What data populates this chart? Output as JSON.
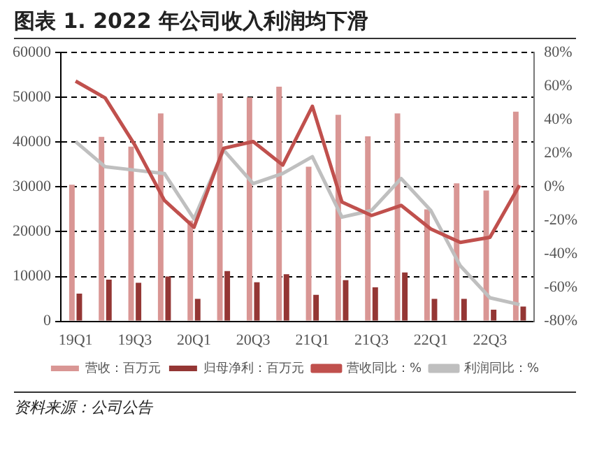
{
  "chart_data": {
    "type": "bar",
    "title": "图表 1. 2022 年公司收入利润均下滑",
    "categories": [
      "19Q1",
      null,
      "19Q3",
      null,
      "20Q1",
      null,
      "20Q3",
      null,
      "21Q1",
      null,
      "21Q3",
      null,
      "22Q1",
      null,
      "22Q3",
      null
    ],
    "series": [
      {
        "name": "营收：百万元",
        "color": "#d99694",
        "values": [
          30500,
          41200,
          39000,
          46400,
          22500,
          50900,
          50000,
          52400,
          34500,
          46100,
          41300,
          46400,
          25000,
          30800,
          29200,
          46800
        ]
      },
      {
        "name": "归母净利：百万元",
        "color": "#943634",
        "values": [
          6200,
          9300,
          8600,
          10000,
          5000,
          11200,
          8700,
          10500,
          5900,
          9200,
          7600,
          10900,
          5000,
          5000,
          2600,
          3300
        ]
      },
      {
        "name": "营收同比：%",
        "type": "line",
        "axis": "y2",
        "color": "#c0504d",
        "values": [
          63,
          53,
          25,
          -8,
          -24,
          23,
          27,
          13,
          48,
          -9,
          -17,
          -11,
          -25,
          -33,
          -30,
          1
        ]
      },
      {
        "name": "利润同比：%",
        "type": "line",
        "axis": "y2",
        "color": "#bfbfbf",
        "values": [
          27,
          12,
          10,
          8,
          -19,
          22,
          2,
          8,
          18,
          -18,
          -14,
          5,
          -14,
          -47,
          -66,
          -70
        ]
      }
    ],
    "ylim": [
      0,
      60000
    ],
    "yticks": [
      0,
      10000,
      20000,
      30000,
      40000,
      50000,
      60000
    ],
    "y2lim": [
      -80,
      80
    ],
    "y2ticks": [
      {
        "value": -80,
        "label": "-80%"
      },
      {
        "value": -60,
        "label": "-60%"
      },
      {
        "value": -40,
        "label": "-40%"
      },
      {
        "value": -20,
        "label": "-20%"
      },
      {
        "value": 0,
        "label": "0%"
      },
      {
        "value": 20,
        "label": "20%"
      },
      {
        "value": 40,
        "label": "40%"
      },
      {
        "value": 60,
        "label": "60%"
      },
      {
        "value": 80,
        "label": "80%"
      }
    ],
    "grid": "y",
    "legend": "bottom",
    "marker": "none",
    "line_style": "solid",
    "annotations": [
      "资料来源：公司公告"
    ]
  }
}
